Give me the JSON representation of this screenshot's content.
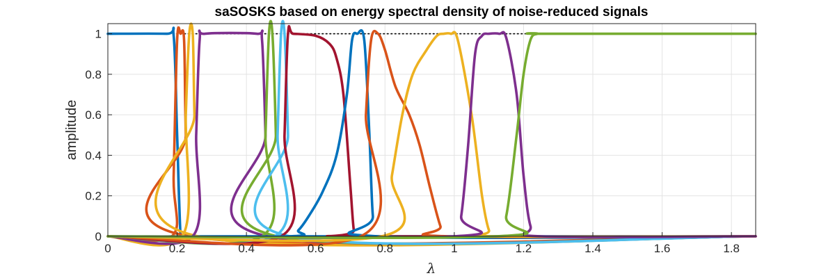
{
  "chart_data": {
    "type": "line",
    "title": "saSOSKS based on energy spectral density of noise-reduced signals",
    "xlabel": "λ",
    "ylabel": "amplitude",
    "xlim": [
      0,
      1.87
    ],
    "ylim": [
      0,
      1.05
    ],
    "xticks": [
      0,
      0.2,
      0.4,
      0.6,
      0.8,
      1,
      1.2,
      1.4,
      1.6,
      1.8
    ],
    "xtick_labels": [
      "0",
      "0.2",
      "0.4",
      "0.6",
      "0.8",
      "1",
      "1.2",
      "1.4",
      "1.6",
      "1.8"
    ],
    "yticks": [
      0,
      0.2,
      0.4,
      0.6,
      0.8,
      1
    ],
    "ytick_labels": [
      "0",
      "0.2",
      "0.4",
      "0.6",
      "0.8",
      "1"
    ],
    "grid": true,
    "reference_line": {
      "y": 1,
      "x": [
        0,
        1.87
      ],
      "style": "dotted",
      "color": "#000000"
    },
    "series": [
      {
        "color": "#0072BD",
        "x": [
          0,
          0.17,
          0.19,
          0.2,
          0.21,
          0.22,
          1.87
        ],
        "y": [
          1,
          1,
          0.99,
          0.5,
          0,
          0,
          0
        ]
      },
      {
        "color": "#D95319",
        "x": [
          0,
          0.185,
          0.19,
          0.2,
          0.21,
          0.22,
          0.225,
          0.235,
          1.87
        ],
        "y": [
          0,
          0,
          0.3,
          0.97,
          1,
          0.97,
          0.5,
          0,
          0
        ]
      },
      {
        "color": "#EDB120",
        "x": [
          0,
          0.215,
          0.225,
          0.235,
          0.245,
          0.25,
          0.26,
          1.87
        ],
        "y": [
          0,
          0,
          0.6,
          1,
          1,
          0.6,
          0,
          0
        ]
      },
      {
        "color": "#7E2F8E",
        "x": [
          0,
          0.245,
          0.255,
          0.265,
          0.28,
          0.43,
          0.445,
          0.455,
          0.462,
          1.87
        ],
        "y": [
          0,
          0,
          0.5,
          0.97,
          1,
          1,
          0.97,
          0.5,
          0,
          0
        ]
      },
      {
        "color": "#77AC30",
        "x": [
          0,
          0.445,
          0.455,
          0.465,
          0.475,
          0.485,
          0.49,
          1.87
        ],
        "y": [
          0,
          0,
          0.5,
          1,
          1,
          0.5,
          0,
          0
        ]
      },
      {
        "color": "#4DBEEE",
        "x": [
          0,
          0.482,
          0.49,
          0.5,
          0.51,
          0.52,
          0.525,
          1.87
        ],
        "y": [
          0,
          0,
          0.5,
          1,
          1,
          0.5,
          0,
          0
        ]
      },
      {
        "color": "#A2142F",
        "x": [
          0,
          0.5,
          0.51,
          0.52,
          0.535,
          0.6,
          0.64,
          0.66,
          0.68,
          0.7,
          0.71,
          0.72,
          1.87
        ],
        "y": [
          0,
          0,
          0.5,
          1,
          1,
          0.99,
          0.95,
          0.88,
          0.7,
          0.25,
          0.03,
          0,
          0
        ]
      },
      {
        "color": "#0072BD",
        "x": [
          0,
          0.52,
          0.55,
          0.58,
          0.62,
          0.66,
          0.69,
          0.705,
          0.72,
          0.74,
          0.755,
          0.765,
          0.78,
          1.87
        ],
        "y": [
          0,
          0,
          0.03,
          0.1,
          0.22,
          0.4,
          0.7,
          0.97,
          1,
          0.97,
          0.5,
          0.1,
          0,
          0
        ]
      },
      {
        "color": "#D95319",
        "x": [
          0,
          0.73,
          0.745,
          0.76,
          0.78,
          0.8,
          0.83,
          0.87,
          0.9,
          0.93,
          0.96,
          0.98,
          1.87
        ],
        "y": [
          0,
          0,
          0.6,
          0.97,
          1,
          0.92,
          0.74,
          0.6,
          0.45,
          0.24,
          0.05,
          0,
          0
        ]
      },
      {
        "color": "#EDB120",
        "x": [
          0,
          0.79,
          0.82,
          0.85,
          0.88,
          0.92,
          0.95,
          0.97,
          0.99,
          1.01,
          1.05,
          1.08,
          1.1,
          1.12,
          1.87
        ],
        "y": [
          0,
          0,
          0.3,
          0.6,
          0.8,
          0.92,
          0.99,
          1,
          1,
          0.97,
          0.6,
          0.2,
          0.03,
          0,
          0
        ]
      },
      {
        "color": "#7E2F8E",
        "x": [
          0,
          1,
          1.02,
          1.04,
          1.06,
          1.08,
          1.1,
          1.13,
          1.15,
          1.18,
          1.2,
          1.22,
          1.25,
          1.87
        ],
        "y": [
          0,
          0,
          0.1,
          0.45,
          0.9,
          0.99,
          1,
          1,
          0.98,
          0.7,
          0.3,
          0.05,
          0,
          0
        ]
      },
      {
        "color": "#77AC30",
        "x": [
          0,
          1.12,
          1.15,
          1.18,
          1.2,
          1.22,
          1.24,
          1.26,
          1.87
        ],
        "y": [
          0,
          0,
          0.1,
          0.5,
          0.8,
          0.97,
          1,
          1,
          1
        ]
      }
    ]
  }
}
